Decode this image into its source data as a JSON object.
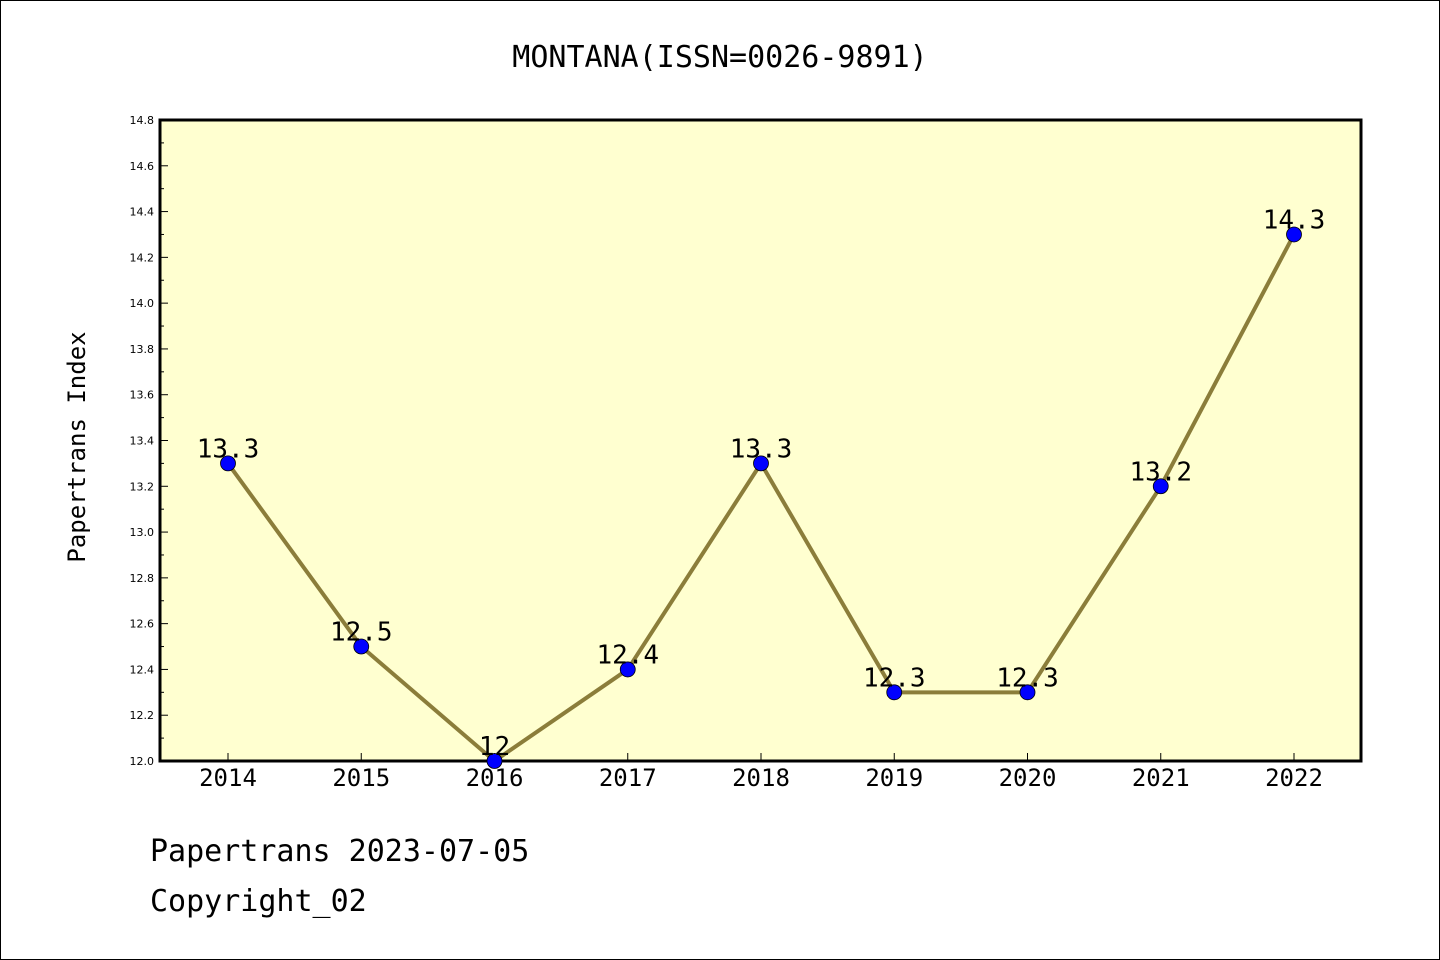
{
  "chart_data": {
    "type": "line",
    "title": "MONTANA(ISSN=0026-9891)",
    "xlabel": "",
    "ylabel": "Papertrans Index",
    "x": [
      "2014",
      "2015",
      "2016",
      "2017",
      "2018",
      "2019",
      "2020",
      "2021",
      "2022"
    ],
    "series": [
      {
        "values": [
          13.3,
          12.5,
          12.0,
          12.4,
          13.3,
          12.3,
          12.3,
          13.2,
          14.3
        ],
        "labels": [
          "13.3",
          "12.5",
          "12",
          "12.4",
          "13.3",
          "12.3",
          "12.3",
          "13.2",
          "14.3"
        ],
        "line_color": "#8b7d3a",
        "marker_color": "#0000ff"
      }
    ],
    "yticks": [
      "12.0",
      "12.2",
      "12.4",
      "12.6",
      "12.8",
      "13.0",
      "13.2",
      "13.4",
      "13.6",
      "13.8",
      "14.0",
      "14.2",
      "14.4",
      "14.6",
      "14.8"
    ],
    "ylim": [
      12.0,
      14.8
    ],
    "grid": false,
    "plot_background": "#ffffd0"
  },
  "footer": {
    "date_text": "Papertrans 2023-07-05",
    "copyright_text": "Copyright_02"
  }
}
